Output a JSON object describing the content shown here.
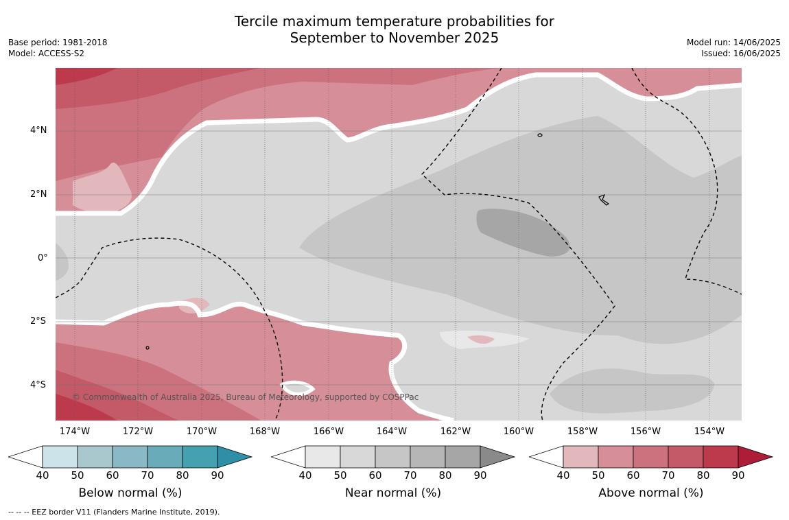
{
  "title": {
    "line1": "Tercile maximum temperature probabilities for",
    "line2": "September to November 2025"
  },
  "meta_left": {
    "base_period": "Base period: 1981-2018",
    "model": "Model: ACCESS-S2"
  },
  "meta_right": {
    "model_run": "Model run: 14/06/2025",
    "issued": "Issued: 16/06/2025"
  },
  "map": {
    "lat_ticks": [
      "4°N",
      "2°N",
      "0°",
      "2°S",
      "4°S"
    ],
    "lon_ticks": [
      "174°W",
      "172°W",
      "170°W",
      "168°W",
      "166°W",
      "164°W",
      "162°W",
      "160°W",
      "158°W",
      "156°W",
      "154°W"
    ],
    "copyright": "© Commonwealth of Australia 2025, Bureau of Meteorology, supported by COSPPac"
  },
  "colorbars": [
    {
      "label": "Below normal (%)",
      "ticks": [
        "40",
        "50",
        "60",
        "70",
        "80",
        "90"
      ],
      "colors": [
        "#ffffff",
        "#cbe3e9",
        "#a8c8ce",
        "#8ab8c4",
        "#6aabba",
        "#45a0b0",
        "#2e8fa6"
      ]
    },
    {
      "label": "Near normal (%)",
      "ticks": [
        "40",
        "50",
        "60",
        "70",
        "80",
        "90"
      ],
      "colors": [
        "#ffffff",
        "#e8e8e8",
        "#d8d8d8",
        "#c6c6c6",
        "#b6b6b6",
        "#a6a6a6",
        "#8a8a8a"
      ]
    },
    {
      "label": "Above normal (%)",
      "ticks": [
        "40",
        "50",
        "60",
        "70",
        "80",
        "90"
      ],
      "colors": [
        "#ffffff",
        "#e2b8bd",
        "#d68f98",
        "#cc727e",
        "#c45967",
        "#bd3a4c",
        "#ae1d38"
      ]
    }
  ],
  "footer": "--  --  -- EEZ border V11 (Flanders Marine Institute, 2019)."
}
